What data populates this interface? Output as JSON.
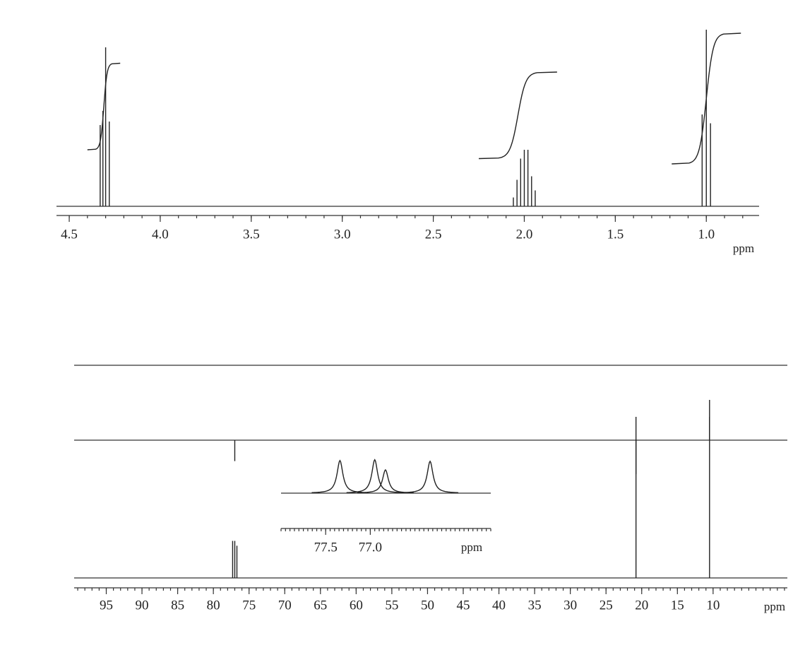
{
  "chart_data": [
    {
      "type": "stem",
      "axis_label": "ppm",
      "xlim": [
        4.57,
        0.71
      ],
      "xticks": [
        {
          "value": 4.5,
          "label": "4.5"
        },
        {
          "value": 4.0,
          "label": "4.0"
        },
        {
          "value": 3.5,
          "label": "3.5"
        },
        {
          "value": 3.0,
          "label": "3.0"
        },
        {
          "value": 2.5,
          "label": "2.5"
        },
        {
          "value": 2.0,
          "label": "2.0"
        },
        {
          "value": 1.5,
          "label": "1.5"
        },
        {
          "value": 1.0,
          "label": "1.0"
        }
      ],
      "ylim": [
        0,
        100
      ],
      "series": [
        {
          "color": "#222",
          "x": [
            4.33,
            4.315,
            4.3,
            4.28,
            2.06,
            2.04,
            2.02,
            2.0,
            1.98,
            1.96,
            1.94,
            1.023,
            1.0,
            0.977
          ],
          "values": [
            46,
            54,
            90,
            48,
            5,
            15,
            27,
            32,
            32,
            17,
            9,
            52,
            100,
            47
          ]
        }
      ],
      "integrals": [
        {
          "from": 4.4,
          "to": 4.22,
          "values": [
            32,
            81
          ]
        },
        {
          "from": 2.25,
          "to": 1.82,
          "values": [
            27,
            76
          ]
        },
        {
          "from": 1.19,
          "to": 0.81,
          "values": [
            24,
            98
          ]
        }
      ]
    },
    {
      "type": "stem",
      "axis_label": "ppm",
      "xlim": [
        99.5,
        -0.4
      ],
      "xticks": [
        95,
        90,
        85,
        80,
        75,
        70,
        65,
        60,
        55,
        50,
        45,
        40,
        35,
        30,
        25,
        20,
        15,
        10
      ],
      "ylim": [
        -30,
        100
      ],
      "series": [
        {
          "color": "#222",
          "x": [],
          "values": []
        },
        {
          "color": "#222",
          "x": [
            77.0,
            20.8,
            10.5
          ],
          "values": [
            -13,
            -21,
            25
          ]
        },
        {
          "color": "#222",
          "x": [
            77.3,
            77.0,
            76.7,
            20.8,
            10.5
          ],
          "values": [
            23,
            23,
            20,
            100,
            100
          ]
        }
      ]
    },
    {
      "type": "peaks",
      "axis_label": "ppm",
      "xlim": [
        78.0,
        75.65
      ],
      "xticks": [
        {
          "value": 77.5,
          "label": "77.5"
        },
        {
          "value": 77.0,
          "label": "77.0"
        }
      ],
      "ylim": [
        0,
        50
      ],
      "series": [
        {
          "color": "#222",
          "x": [
            77.34,
            76.95,
            76.83,
            76.33
          ],
          "values": [
            42,
            43,
            30,
            41
          ]
        }
      ]
    }
  ]
}
